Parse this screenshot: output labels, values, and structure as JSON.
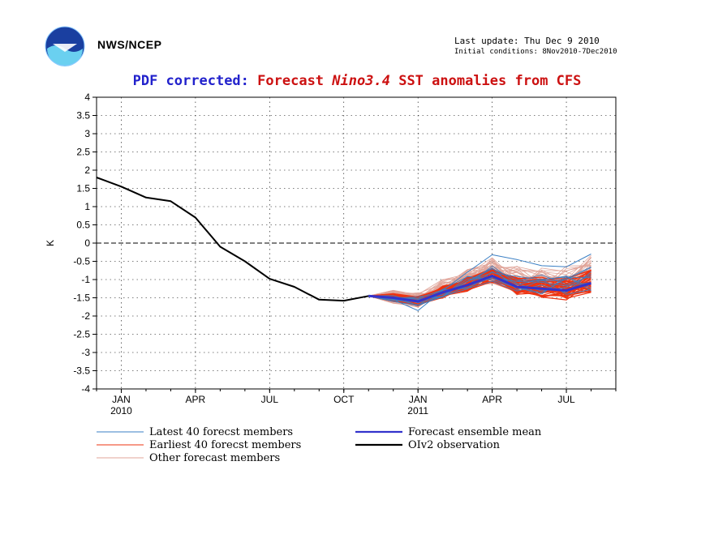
{
  "header": {
    "org": "NWS/NCEP",
    "last_update": "Last update: Thu Dec  9 2010",
    "initial_conditions": "Initial conditions: 8Nov2010-7Dec2010",
    "title_prefix": "PDF corrected:",
    "title_forecast": "Forecast",
    "title_nino": "Nino3.4",
    "title_rest": "SST anomalies from CFS"
  },
  "colors": {
    "latest": "#3a7fc4",
    "earliest": "#ee3311",
    "other": "#e0a59a",
    "mean": "#3333cc",
    "observation": "#000000"
  },
  "chart_data": {
    "type": "line",
    "ylabel": "K",
    "ylim": [
      -4,
      4
    ],
    "y_ticks": [
      4,
      3.5,
      3,
      2.5,
      2,
      1.5,
      1,
      0.5,
      0,
      -0.5,
      -1,
      -1.5,
      -2,
      -2.5,
      -3,
      -3.5,
      -4
    ],
    "x_ticks": [
      {
        "month": "JAN",
        "year": "2010",
        "x": 1
      },
      {
        "month": "APR",
        "year": "",
        "x": 4
      },
      {
        "month": "JUL",
        "year": "",
        "x": 7
      },
      {
        "month": "OCT",
        "year": "",
        "x": 10
      },
      {
        "month": "JAN",
        "year": "2011",
        "x": 13
      },
      {
        "month": "APR",
        "year": "",
        "x": 16
      },
      {
        "month": "JUL",
        "year": "",
        "x": 19
      }
    ],
    "xlim": [
      0,
      21
    ],
    "observation": {
      "name": "OIv2 observation",
      "x": [
        0,
        1,
        2,
        3,
        4,
        5,
        6,
        7,
        8,
        9,
        10,
        11
      ],
      "values": [
        1.8,
        1.55,
        1.25,
        1.15,
        0.7,
        -0.1,
        -0.5,
        -0.98,
        -1.2,
        -1.55,
        -1.58,
        -1.45
      ]
    },
    "ensemble_mean": {
      "name": "Forecast ensemble mean",
      "x": [
        11,
        12,
        13,
        14,
        15,
        16,
        17,
        18,
        19,
        20
      ],
      "values": [
        -1.45,
        -1.5,
        -1.6,
        -1.35,
        -1.15,
        -0.9,
        -1.2,
        -1.25,
        -1.3,
        -1.1
      ]
    },
    "latest_example": {
      "x": [
        11,
        12,
        13,
        14,
        15,
        16,
        17,
        18,
        19,
        20
      ],
      "values": [
        -1.45,
        -1.55,
        -1.85,
        -1.3,
        -0.8,
        -0.32,
        -0.45,
        -0.62,
        -0.65,
        -0.3
      ]
    },
    "legend": [
      {
        "key": "latest",
        "label": "Latest 40 forecst members"
      },
      {
        "key": "earliest",
        "label": "Earliest 40 forecst members"
      },
      {
        "key": "other",
        "label": "Other forecast members"
      },
      {
        "key": "mean",
        "label": "Forecast ensemble mean"
      },
      {
        "key": "observation",
        "label": "OIv2 observation"
      }
    ]
  }
}
